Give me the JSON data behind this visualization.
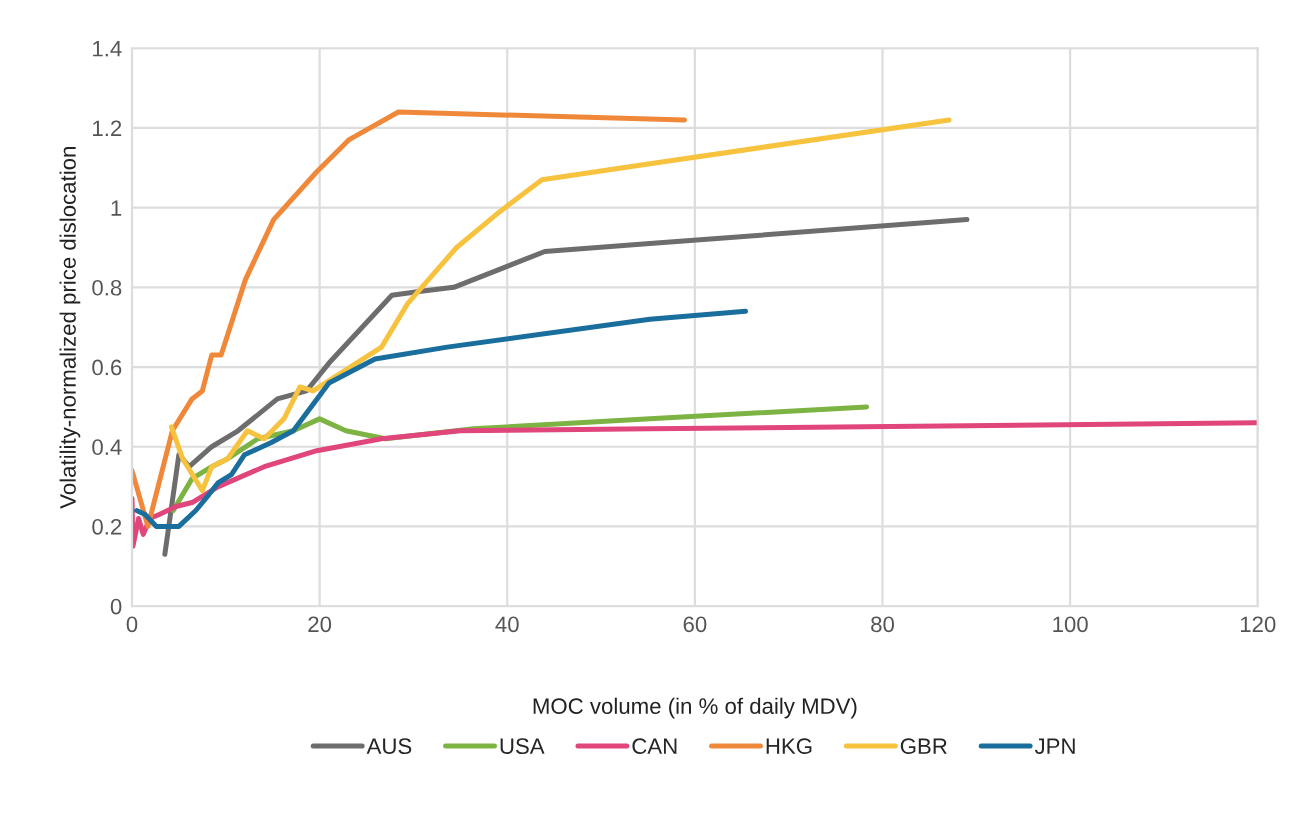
{
  "chart_data": {
    "type": "line",
    "xlabel": "MOC volume (in % of daily MDV)",
    "ylabel": "Volatility-normalized price dislocation",
    "xlim": [
      0,
      120
    ],
    "xticks": [
      0,
      20,
      40,
      60,
      80,
      100,
      120
    ],
    "ylim": [
      0,
      1.4
    ],
    "yticks": [
      0,
      0.2,
      0.4,
      0.6,
      0.8,
      1,
      1.2,
      1.4
    ],
    "grid": true,
    "legend": "bottom",
    "marker": "none",
    "line_style": "solid",
    "series": [
      {
        "name": "AUS",
        "color": "#6d6d6d",
        "x": [
          3.5,
          5.0,
          6.1,
          8.5,
          11.3,
          15.5,
          18.6,
          21.0,
          27.7,
          30.8,
          34.3,
          44.0,
          55.2,
          89.0
        ],
        "values": [
          0.13,
          0.38,
          0.35,
          0.4,
          0.44,
          0.52,
          0.54,
          0.61,
          0.78,
          0.79,
          0.8,
          0.89,
          0.91,
          0.97
        ]
      },
      {
        "name": "USA",
        "color": "#7cb342",
        "x": [
          4.4,
          6.4,
          8.5,
          10.2,
          13.4,
          17.2,
          20.0,
          22.8,
          27.0,
          36.4,
          55.2,
          78.3
        ],
        "values": [
          0.24,
          0.32,
          0.35,
          0.37,
          0.42,
          0.44,
          0.47,
          0.44,
          0.42,
          0.445,
          0.47,
          0.5
        ]
      },
      {
        "name": "CAN",
        "color": "#e0457b",
        "x": [
          0,
          0.1,
          0.7,
          1.2,
          1.9,
          2.9,
          4.7,
          6.4,
          9.2,
          14.1,
          19.7,
          26.6,
          35.0,
          55.2,
          120
        ],
        "values": [
          0.27,
          0.15,
          0.22,
          0.18,
          0.22,
          0.23,
          0.25,
          0.26,
          0.3,
          0.35,
          0.39,
          0.42,
          0.44,
          0.445,
          0.46
        ]
      },
      {
        "name": "HKG",
        "color": "#f0883a",
        "x": [
          0,
          1.7,
          4.3,
          6.4,
          7.5,
          8.5,
          9.5,
          12.1,
          15.1,
          19.7,
          23.1,
          28.4,
          58.9
        ],
        "values": [
          0.34,
          0.2,
          0.44,
          0.52,
          0.54,
          0.63,
          0.63,
          0.82,
          0.97,
          1.09,
          1.17,
          1.24,
          1.22
        ]
      },
      {
        "name": "GBR",
        "color": "#f7c23e",
        "x": [
          4.2,
          5.4,
          7.5,
          8.5,
          10.2,
          12.3,
          14.1,
          16.2,
          17.9,
          19.3,
          26.6,
          29.4,
          34.6,
          39.2,
          43.7,
          55.2,
          87.1
        ],
        "values": [
          0.45,
          0.37,
          0.29,
          0.35,
          0.37,
          0.44,
          0.42,
          0.47,
          0.55,
          0.54,
          0.65,
          0.76,
          0.9,
          0.99,
          1.07,
          1.11,
          1.22
        ]
      },
      {
        "name": "JPN",
        "color": "#1a6e9e",
        "x": [
          0.5,
          1.4,
          2.6,
          5.0,
          6.8,
          8.2,
          9.2,
          10.6,
          12.0,
          14.8,
          17.2,
          21.0,
          25.9,
          33.6,
          55.2,
          65.4
        ],
        "values": [
          0.24,
          0.23,
          0.2,
          0.2,
          0.24,
          0.28,
          0.31,
          0.33,
          0.38,
          0.41,
          0.44,
          0.56,
          0.62,
          0.65,
          0.72,
          0.74
        ]
      }
    ]
  }
}
